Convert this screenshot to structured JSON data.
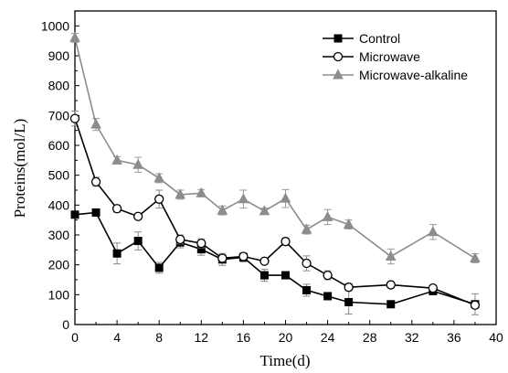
{
  "chart_data": {
    "type": "line",
    "xlabel": "Time(d)",
    "ylabel": "Proteins(mol/L)",
    "xlim": [
      0,
      40
    ],
    "ylim": [
      0,
      1050
    ],
    "xticks": [
      0,
      4,
      8,
      12,
      16,
      20,
      24,
      28,
      32,
      36,
      40
    ],
    "xtick_labels": [
      "0",
      "4",
      "8",
      "12",
      "16",
      "20",
      "24",
      "28",
      "32",
      "36",
      "40"
    ],
    "yticks": [
      0,
      100,
      200,
      300,
      400,
      500,
      600,
      700,
      800,
      900,
      1000
    ],
    "ytick_labels": [
      "0",
      "100",
      "200",
      "300",
      "400",
      "500",
      "600",
      "700",
      "800",
      "900",
      "1000"
    ],
    "grid": false,
    "legend_position": "top-right",
    "series": [
      {
        "name": "Control",
        "color": "#000000",
        "marker": "square-filled",
        "x": [
          0,
          2,
          4,
          6,
          8,
          10,
          12,
          14,
          16,
          18,
          20,
          22,
          24,
          26,
          30,
          34,
          38
        ],
        "y": [
          368,
          375,
          238,
          280,
          190,
          275,
          252,
          218,
          225,
          165,
          165,
          115,
          95,
          75,
          68,
          112,
          68
        ],
        "err": [
          5,
          8,
          35,
          30,
          18,
          18,
          20,
          20,
          15,
          20,
          12,
          20,
          10,
          40,
          5,
          8,
          35
        ]
      },
      {
        "name": "Microwave",
        "color": "#000000",
        "marker": "circle-open",
        "x": [
          0,
          2,
          4,
          6,
          8,
          10,
          12,
          14,
          16,
          18,
          20,
          22,
          24,
          26,
          30,
          34,
          38
        ],
        "y": [
          690,
          478,
          388,
          362,
          420,
          285,
          272,
          222,
          228,
          212,
          278,
          205,
          165,
          125,
          133,
          122,
          65
        ],
        "err": [
          25,
          15,
          12,
          8,
          30,
          15,
          15,
          12,
          10,
          8,
          12,
          25,
          15,
          12,
          10,
          10,
          10
        ]
      },
      {
        "name": "Microwave-alkaline",
        "color": "#8c8c8c",
        "marker": "triangle-filled",
        "x": [
          0,
          2,
          4,
          6,
          8,
          10,
          12,
          14,
          16,
          18,
          20,
          22,
          24,
          26,
          30,
          34,
          38
        ],
        "y": [
          960,
          670,
          550,
          535,
          490,
          435,
          440,
          382,
          420,
          380,
          422,
          318,
          360,
          335,
          228,
          310,
          222
        ],
        "err": [
          15,
          20,
          12,
          25,
          15,
          15,
          12,
          15,
          30,
          10,
          30,
          15,
          25,
          15,
          25,
          25,
          15
        ]
      }
    ]
  }
}
